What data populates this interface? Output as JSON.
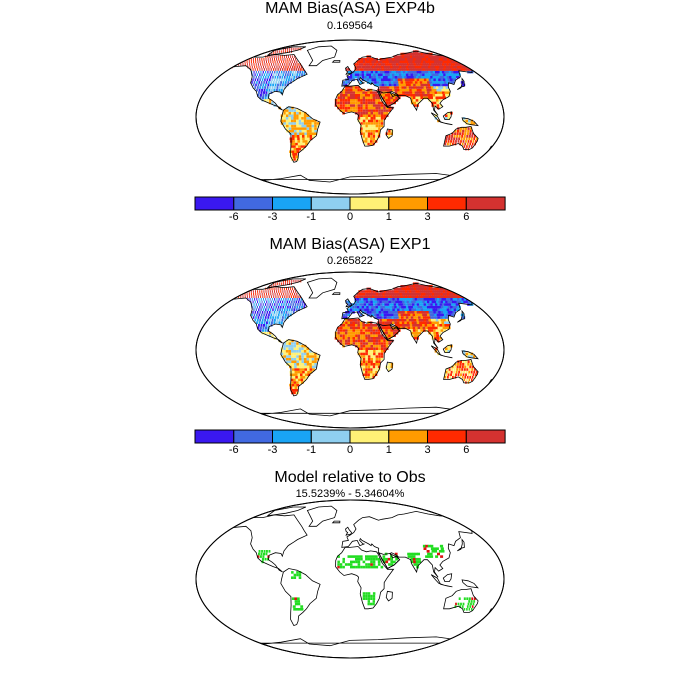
{
  "panels": [
    {
      "title": "MAM Bias(ASA) EXP4b",
      "subtitle": "0.169564",
      "style": "bias",
      "colorbar": true
    },
    {
      "title": "MAM Bias(ASA) EXP1",
      "subtitle": "0.265822",
      "style": "bias2",
      "colorbar": true
    },
    {
      "title": "Model relative to Obs",
      "subtitle": "15.5239% - 5.34604%",
      "style": "relative",
      "colorbar": false
    }
  ],
  "colorbar": {
    "colors": [
      "#3a18f0",
      "#4169e1",
      "#19a4f5",
      "#8fcff0",
      "#fff176",
      "#ff9b00",
      "#ff2a00",
      "#d43230"
    ],
    "labels": [
      "-6",
      "-3",
      "-1",
      "0",
      "1",
      "3",
      "6"
    ]
  },
  "relative_colors": {
    "green": "#22dd22",
    "red": "#dd1111"
  }
}
